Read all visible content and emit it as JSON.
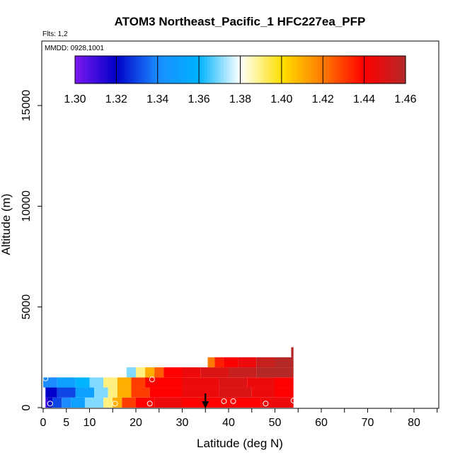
{
  "chart_data": {
    "type": "heatmap",
    "title": "ATOM3 Northeast_Pacific_1 HFC227ea_PFP",
    "flights_label": "Flts: 1,2",
    "dates_label": "MMDD: 0928,1001",
    "xlabel": "Latitude (deg N)",
    "ylabel": "Altitude (m)",
    "xlim": [
      0,
      86
    ],
    "ylim": [
      0,
      17500
    ],
    "x_ticks": [
      0,
      5,
      10,
      20,
      30,
      40,
      50,
      60,
      70,
      80
    ],
    "y_ticks": [
      0,
      5000,
      10000,
      15000
    ],
    "colorbar": {
      "ticks": [
        "1.30",
        "1.32",
        "1.34",
        "1.36",
        "1.38",
        "1.40",
        "1.42",
        "1.44",
        "1.46"
      ],
      "range": [
        1.3,
        1.46
      ]
    },
    "colors": {
      "c130": "#7b18f0",
      "c132": "#0000c8",
      "c134": "#1a8cff",
      "c136": "#00b4ff",
      "c138": "#ffffff",
      "c140": "#ffe000",
      "c142": "#ff7a00",
      "c144": "#ff0000",
      "c146": "#b42828"
    },
    "bands": [
      {
        "alt_bottom": 0,
        "alt_top": 500,
        "segments": [
          [
            0.5,
            1,
            1.31
          ],
          [
            1,
            2,
            1.32
          ],
          [
            2,
            4,
            1.33
          ],
          [
            4,
            6,
            1.34
          ],
          [
            6,
            9,
            1.35
          ],
          [
            9,
            13,
            1.37
          ],
          [
            13,
            15,
            1.39
          ],
          [
            15,
            17,
            1.41
          ],
          [
            17,
            20,
            1.43
          ],
          [
            20,
            24,
            1.44
          ],
          [
            24,
            30,
            1.445
          ],
          [
            30,
            40,
            1.44
          ],
          [
            40,
            47,
            1.44
          ],
          [
            47,
            54,
            1.445
          ]
        ]
      },
      {
        "alt_bottom": 500,
        "alt_top": 1000,
        "segments": [
          [
            0.5,
            3,
            1.32
          ],
          [
            3,
            7,
            1.33
          ],
          [
            7,
            11,
            1.35
          ],
          [
            11,
            14,
            1.37
          ],
          [
            14,
            16,
            1.39
          ],
          [
            16,
            19,
            1.41
          ],
          [
            19,
            23,
            1.43
          ],
          [
            23,
            30,
            1.44
          ],
          [
            30,
            38,
            1.445
          ],
          [
            38,
            45,
            1.45
          ],
          [
            45,
            50,
            1.445
          ],
          [
            50,
            54,
            1.44
          ]
        ]
      },
      {
        "alt_bottom": 1000,
        "alt_top": 1500,
        "segments": [
          [
            0,
            3,
            1.34
          ],
          [
            3,
            7,
            1.35
          ],
          [
            7,
            10,
            1.36
          ],
          [
            10,
            13,
            1.37
          ],
          [
            13,
            16,
            1.39
          ],
          [
            16,
            19,
            1.41
          ],
          [
            19,
            22,
            1.43
          ],
          [
            22,
            30,
            1.44
          ],
          [
            30,
            38,
            1.445
          ],
          [
            38,
            44,
            1.45
          ],
          [
            44,
            50,
            1.445
          ],
          [
            50,
            54,
            1.44
          ]
        ]
      },
      {
        "alt_bottom": 1500,
        "alt_top": 2000,
        "segments": [
          [
            18,
            20,
            1.37
          ],
          [
            20,
            22,
            1.39
          ],
          [
            22,
            24,
            1.41
          ],
          [
            24,
            26,
            1.425
          ],
          [
            26,
            30,
            1.44
          ],
          [
            30,
            34,
            1.445
          ],
          [
            34,
            40,
            1.45
          ],
          [
            40,
            46,
            1.455
          ],
          [
            46,
            54,
            1.46
          ]
        ]
      },
      {
        "alt_bottom": 2000,
        "alt_top": 2500,
        "segments": [
          [
            35.5,
            37,
            1.42
          ],
          [
            37,
            39,
            1.435
          ],
          [
            39,
            42,
            1.44
          ],
          [
            42,
            46,
            1.445
          ],
          [
            46,
            50,
            1.455
          ],
          [
            50,
            54,
            1.46
          ]
        ]
      },
      {
        "alt_bottom": 2500,
        "alt_top": 3000,
        "segments": [
          [
            53.5,
            54,
            1.46
          ]
        ]
      }
    ],
    "samples": [
      {
        "x": 0.5,
        "y": 1450
      },
      {
        "x": 1.5,
        "y": 200
      },
      {
        "x": 15.5,
        "y": 200
      },
      {
        "x": 23,
        "y": 200
      },
      {
        "x": 23.5,
        "y": 1400
      },
      {
        "x": 39,
        "y": 320
      },
      {
        "x": 41,
        "y": 320
      },
      {
        "x": 48,
        "y": 200
      },
      {
        "x": 54,
        "y": 350
      }
    ],
    "marker": {
      "x": 35,
      "y_from": 700,
      "y_to": 0
    }
  }
}
